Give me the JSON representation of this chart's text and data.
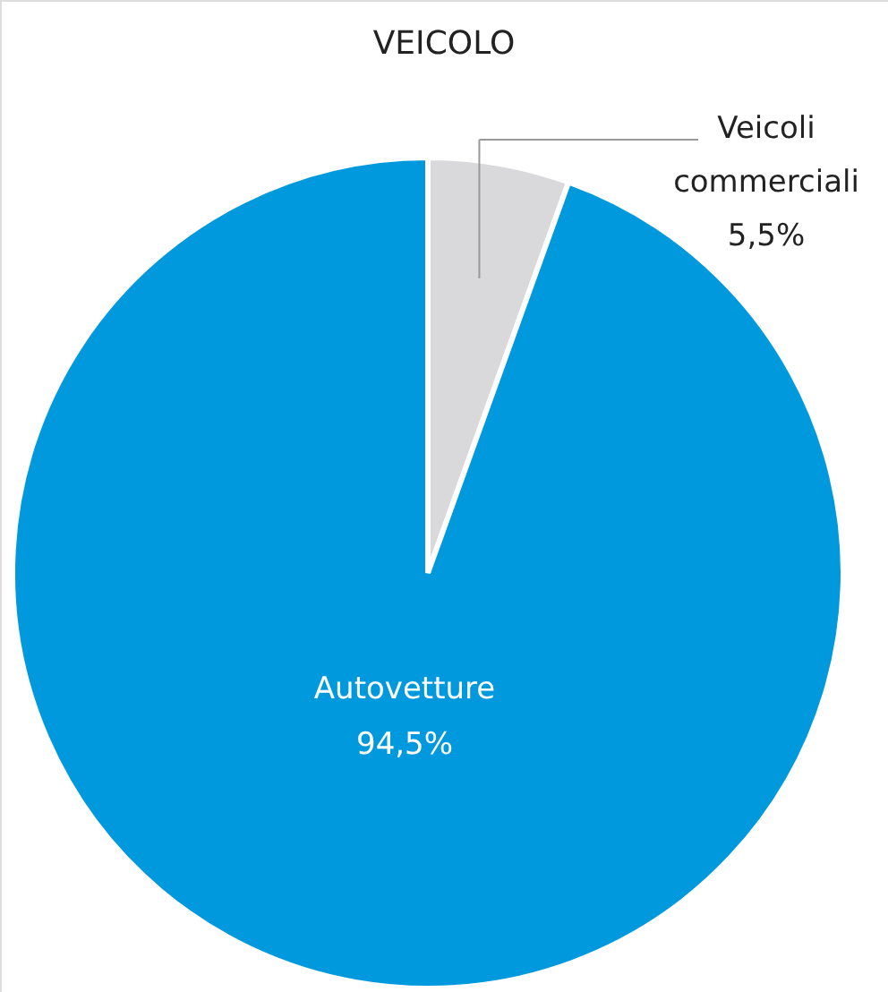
{
  "chart_data": {
    "type": "pie",
    "title": "VEICOLO",
    "categories": [
      "Veicoli commerciali",
      "Autovetture"
    ],
    "values": [
      5.5,
      94.5
    ],
    "colors": [
      "#d9d9db",
      "#0099dd"
    ],
    "value_labels": [
      "5,5%",
      "94,5%"
    ]
  }
}
